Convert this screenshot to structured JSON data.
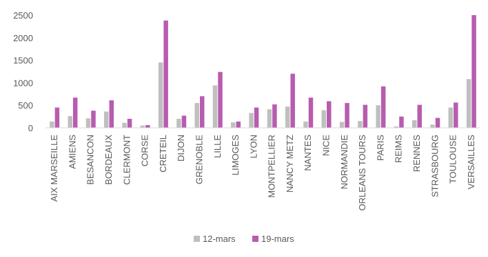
{
  "chart_data": {
    "type": "bar",
    "categories": [
      "AIX MARSEILLE",
      "AMIENS",
      "BESANCON",
      "BORDEAUX",
      "CLERMONT",
      "CORSE",
      "CRETEIL",
      "DIJON",
      "GRENOBLE",
      "LILLE",
      "LIMOGES",
      "LYON",
      "MONTPELLIER",
      "NANCY METZ",
      "NANTES",
      "NICE",
      "NORMANDIE",
      "ORLEANS TOURS",
      "PARIS",
      "REIMS",
      "RENNES",
      "STRASBOURG",
      "TOULOUSE",
      "VERSAILLES"
    ],
    "series": [
      {
        "name": "12-mars",
        "color": "#bfbfbf",
        "values": [
          140,
          260,
          210,
          360,
          110,
          50,
          1450,
          200,
          550,
          940,
          120,
          330,
          410,
          470,
          140,
          390,
          130,
          150,
          500,
          30,
          170,
          70,
          450,
          1080
        ]
      },
      {
        "name": "19-mars",
        "color": "#b85cb0",
        "values": [
          450,
          670,
          380,
          610,
          200,
          60,
          2380,
          270,
          700,
          1240,
          140,
          450,
          520,
          1200,
          670,
          590,
          550,
          510,
          920,
          250,
          510,
          220,
          560,
          2500
        ]
      }
    ],
    "ylim": [
      0,
      2500
    ],
    "yticks": [
      0,
      500,
      1000,
      1500,
      2000,
      2500
    ],
    "grid": false,
    "legend_position": "bottom"
  }
}
